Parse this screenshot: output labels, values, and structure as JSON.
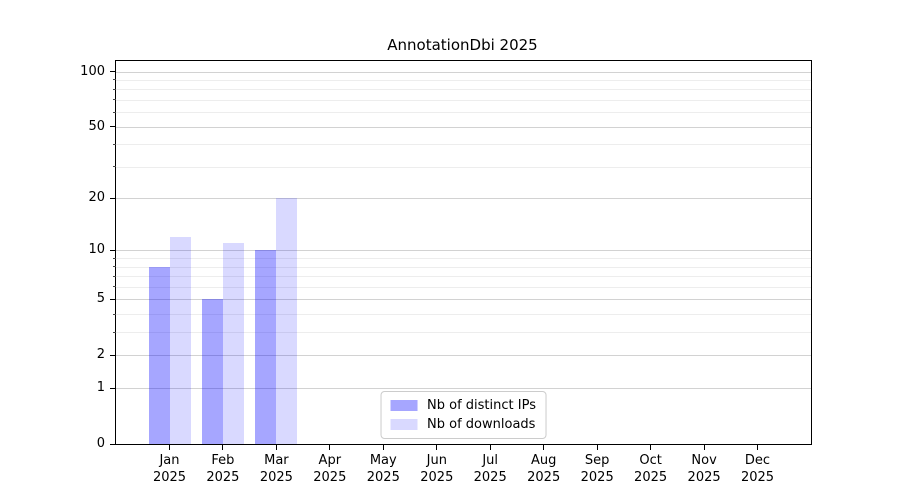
{
  "chart_data": {
    "type": "bar",
    "title": "AnnotationDbi 2025",
    "categories": [
      "Jan",
      "Feb",
      "Mar",
      "Apr",
      "May",
      "Jun",
      "Jul",
      "Aug",
      "Sep",
      "Oct",
      "Nov",
      "Dec"
    ],
    "year": "2025",
    "series": [
      {
        "name": "Nb of distinct IPs",
        "color": "rgba(0,0,255,0.35)",
        "values": [
          8,
          5,
          10,
          0,
          0,
          0,
          0,
          0,
          0,
          0,
          0,
          0
        ]
      },
      {
        "name": "Nb of downloads",
        "color": "rgba(0,0,255,0.15)",
        "values": [
          12,
          11,
          20,
          0,
          0,
          0,
          0,
          0,
          0,
          0,
          0,
          0
        ]
      }
    ],
    "y_scale": "log1p",
    "y_ticks": [
      0,
      1,
      2,
      5,
      10,
      20,
      50,
      100
    ],
    "y_minor_ticks": [
      3,
      4,
      6,
      7,
      8,
      9,
      30,
      40,
      60,
      70,
      80,
      90
    ],
    "ylim": [
      0,
      114
    ],
    "xlabel": "",
    "ylabel": "",
    "grid": "on",
    "legend_position": "lower center",
    "colors": {
      "grid_major": "#d2d2d2",
      "grid_minor": "#ededed",
      "spine": "#000000",
      "background": "#ffffff"
    }
  }
}
